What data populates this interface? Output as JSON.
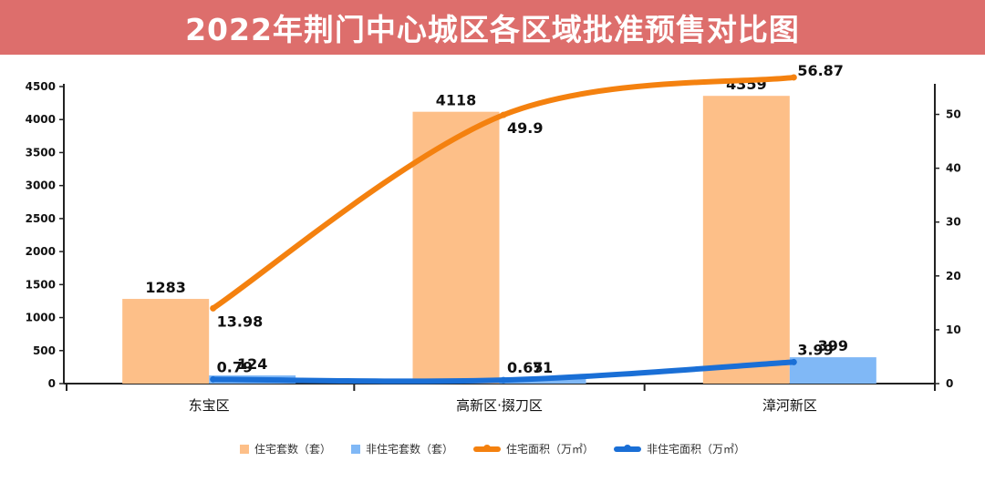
{
  "title": "2022年荆门中心城区各区域批准预售对比图",
  "colors": {
    "title_bg": "#dd6e6c",
    "residential_units": "#fdbf88",
    "non_residential_units": "#80b8f6",
    "residential_area": "#f4810f",
    "non_residential_area": "#1a6fd6"
  },
  "chart_data": {
    "type": "bar",
    "categories": [
      "东宝区",
      "高新区·掇刀区",
      "漳河新区"
    ],
    "y_left": {
      "ylim": [
        0,
        4500
      ],
      "ticks": [
        "0",
        "500",
        "1000",
        "1500",
        "2000",
        "2500",
        "3000",
        "3500",
        "4000",
        "4500"
      ]
    },
    "y_right": {
      "ylim": [
        0,
        55
      ],
      "ticks": [
        "0",
        "10",
        "20",
        "30",
        "40",
        "50"
      ]
    },
    "grid": false,
    "legend_position": "bottom",
    "series": [
      {
        "name": "住宅套数（套）",
        "kind": "bar",
        "axis": "left",
        "values": [
          1283,
          4118,
          4359
        ],
        "labels": [
          "1283",
          "4118",
          "4359"
        ]
      },
      {
        "name": "非住宅套数（套）",
        "kind": "bar",
        "axis": "left",
        "values": [
          124,
          71,
          399
        ],
        "labels": [
          "124",
          "71",
          "399"
        ]
      },
      {
        "name": "住宅面积（万㎡）",
        "kind": "line",
        "axis": "right",
        "smooth": true,
        "values": [
          13.98,
          49.9,
          56.87
        ],
        "labels": [
          "13.98",
          "49.9",
          "56.87"
        ]
      },
      {
        "name": "非住宅面积（万㎡）",
        "kind": "line",
        "axis": "right",
        "smooth": true,
        "values": [
          0.79,
          0.65,
          3.99
        ],
        "labels": [
          "0.79",
          "0.65",
          "3.99"
        ]
      }
    ]
  }
}
